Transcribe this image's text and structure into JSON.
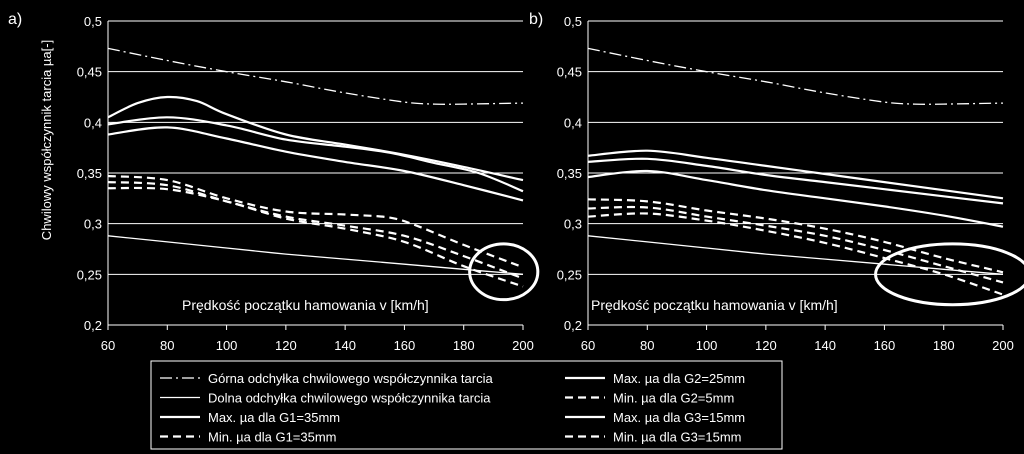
{
  "colors": {
    "background": "#000000",
    "foreground": "#ffffff"
  },
  "shared": {
    "ylabel": "Chwilowy współczynnik tarcia µa[-]",
    "xlabel": "Prędkość  początku hamowania v [km/h]"
  },
  "legend": {
    "entries": [
      {
        "label": "Górna odchyłka chwilowego współczynnika tarcia",
        "style": "dashdot"
      },
      {
        "label": "Dolna odchyłka chwilowego współczynnika tarcia",
        "style": "thin"
      },
      {
        "label": "Max. µa dla G1=35mm",
        "style": "solid"
      },
      {
        "label": "Min. µa dla G1=35mm",
        "style": "dashed"
      },
      {
        "label": "Max. µa dla G2=25mm",
        "style": "solid"
      },
      {
        "label": "Min. µa dla G2=5mm",
        "style": "dashed"
      },
      {
        "label": "Max. µa dla G3=15mm",
        "style": "solid"
      },
      {
        "label": "Min. µa dla G3=15mm",
        "style": "dashed"
      }
    ]
  },
  "chart_data": [
    {
      "type": "line",
      "panel_label": "a)",
      "xlabel": "Prędkość  początku hamowania v [km/h]",
      "ylabel": "Chwilowy współczynnik tarcia µa[-]",
      "xlim": [
        60,
        200
      ],
      "ylim": [
        0.2,
        0.5
      ],
      "xticks": [
        60,
        80,
        100,
        120,
        140,
        160,
        180,
        200
      ],
      "yticks": [
        0.2,
        0.25,
        0.3,
        0.35,
        0.4,
        0.45,
        0.5
      ],
      "ytick_labels": [
        "0,2",
        "0,25",
        "0,3",
        "0,35",
        "0,4",
        "0,45",
        "0,5"
      ],
      "grid": "horizontal",
      "annotation": "ellipse around 180–200 km/h, µa ≈ 0.24–0.27",
      "highlight": {
        "x": [
          182,
          205
        ],
        "y": [
          0.225,
          0.28
        ]
      },
      "series": [
        {
          "name": "Górna odchyłka chwilowego współczynnika tarcia",
          "style": "dashdot",
          "x": [
            60,
            80,
            100,
            120,
            140,
            160,
            170,
            180,
            200
          ],
          "y": [
            0.473,
            0.461,
            0.45,
            0.44,
            0.429,
            0.42,
            0.418,
            0.418,
            0.419
          ]
        },
        {
          "name": "Dolna odchyłka chwilowego współczynnika tarcia",
          "style": "thin",
          "x": [
            60,
            80,
            100,
            120,
            140,
            160,
            180,
            200
          ],
          "y": [
            0.288,
            0.282,
            0.276,
            0.27,
            0.265,
            0.26,
            0.255,
            0.25
          ]
        },
        {
          "name": "Max. µa dla G1=35mm",
          "style": "solid",
          "x": [
            60,
            70,
            80,
            90,
            100,
            120,
            140,
            160,
            180,
            200
          ],
          "y": [
            0.405,
            0.419,
            0.425,
            0.421,
            0.408,
            0.388,
            0.378,
            0.368,
            0.356,
            0.343
          ]
        },
        {
          "name": "Max. µa dla G1=35mm",
          "style": "solid",
          "x": [
            60,
            80,
            100,
            120,
            140,
            155,
            170,
            185,
            200
          ],
          "y": [
            0.398,
            0.405,
            0.397,
            0.383,
            0.376,
            0.37,
            0.36,
            0.35,
            0.332
          ]
        },
        {
          "name": "Max. µa dla G1=35mm",
          "style": "solid",
          "x": [
            60,
            80,
            100,
            120,
            140,
            160,
            180,
            200
          ],
          "y": [
            0.388,
            0.395,
            0.384,
            0.371,
            0.361,
            0.352,
            0.338,
            0.323
          ]
        },
        {
          "name": "Min. µa dla G1=35mm",
          "style": "dashed",
          "x": [
            60,
            80,
            100,
            120,
            140,
            155,
            165,
            180,
            200
          ],
          "y": [
            0.347,
            0.343,
            0.325,
            0.312,
            0.309,
            0.306,
            0.297,
            0.279,
            0.257
          ]
        },
        {
          "name": "Min. µa dla G1=35mm",
          "style": "dashed",
          "x": [
            60,
            80,
            100,
            120,
            140,
            160,
            180,
            200
          ],
          "y": [
            0.341,
            0.338,
            0.322,
            0.307,
            0.298,
            0.288,
            0.268,
            0.246
          ]
        },
        {
          "name": "Min. µa dla G1=35mm",
          "style": "dashed",
          "x": [
            60,
            80,
            100,
            120,
            140,
            160,
            180,
            200
          ],
          "y": [
            0.335,
            0.334,
            0.322,
            0.305,
            0.295,
            0.282,
            0.258,
            0.238
          ]
        }
      ]
    },
    {
      "type": "line",
      "panel_label": "b)",
      "xlabel": "Prędkość  początku hamowania v [km/h]",
      "ylabel": "",
      "xlim": [
        60,
        200
      ],
      "ylim": [
        0.2,
        0.5
      ],
      "xticks": [
        60,
        80,
        100,
        120,
        140,
        160,
        180,
        200
      ],
      "yticks": [
        0.2,
        0.25,
        0.3,
        0.35,
        0.4,
        0.45,
        0.5
      ],
      "ytick_labels": [
        "0,2",
        "0,25",
        "0,3",
        "0,35",
        "0,4",
        "0,45",
        "0,5"
      ],
      "grid": "horizontal",
      "annotation": "ellipse around 160–200 km/h, µa ≈ 0.23–0.28",
      "highlight": {
        "x": [
          157,
          209
        ],
        "y": [
          0.22,
          0.28
        ]
      },
      "series": [
        {
          "name": "Górna odchyłka chwilowego współczynnika tarcia",
          "style": "dashdot",
          "x": [
            60,
            80,
            100,
            120,
            140,
            160,
            170,
            180,
            200
          ],
          "y": [
            0.473,
            0.461,
            0.45,
            0.44,
            0.429,
            0.42,
            0.418,
            0.418,
            0.419
          ]
        },
        {
          "name": "Dolna odchyłka chwilowego współczynnika tarcia",
          "style": "thin",
          "x": [
            60,
            80,
            100,
            120,
            140,
            160,
            180,
            200
          ],
          "y": [
            0.288,
            0.282,
            0.276,
            0.27,
            0.265,
            0.26,
            0.255,
            0.25
          ]
        },
        {
          "name": "Max. µa dla G2=25mm",
          "style": "solid",
          "x": [
            60,
            80,
            100,
            120,
            140,
            160,
            180,
            200
          ],
          "y": [
            0.367,
            0.372,
            0.365,
            0.357,
            0.349,
            0.341,
            0.333,
            0.325
          ]
        },
        {
          "name": "Max. µa dla G3=15mm",
          "style": "solid",
          "x": [
            60,
            80,
            100,
            120,
            140,
            160,
            180,
            200
          ],
          "y": [
            0.361,
            0.364,
            0.357,
            0.348,
            0.341,
            0.334,
            0.327,
            0.32
          ]
        },
        {
          "name": "Max. µa dla G3=15mm",
          "style": "solid",
          "x": [
            60,
            80,
            100,
            120,
            140,
            160,
            180,
            200
          ],
          "y": [
            0.346,
            0.352,
            0.343,
            0.333,
            0.325,
            0.317,
            0.308,
            0.297
          ]
        },
        {
          "name": "Min. µa dla G2=5mm",
          "style": "dashed",
          "x": [
            60,
            80,
            100,
            120,
            140,
            160,
            180,
            200
          ],
          "y": [
            0.324,
            0.322,
            0.313,
            0.305,
            0.295,
            0.282,
            0.266,
            0.252
          ]
        },
        {
          "name": "Min. µa dla G3=15mm",
          "style": "dashed",
          "x": [
            60,
            80,
            100,
            120,
            140,
            160,
            180,
            200
          ],
          "y": [
            0.315,
            0.316,
            0.307,
            0.298,
            0.288,
            0.274,
            0.258,
            0.242
          ]
        },
        {
          "name": "Min. µa dla G3=15mm",
          "style": "dashed",
          "x": [
            60,
            80,
            100,
            120,
            140,
            160,
            180,
            200
          ],
          "y": [
            0.307,
            0.31,
            0.303,
            0.293,
            0.281,
            0.266,
            0.25,
            0.23
          ]
        }
      ]
    }
  ]
}
